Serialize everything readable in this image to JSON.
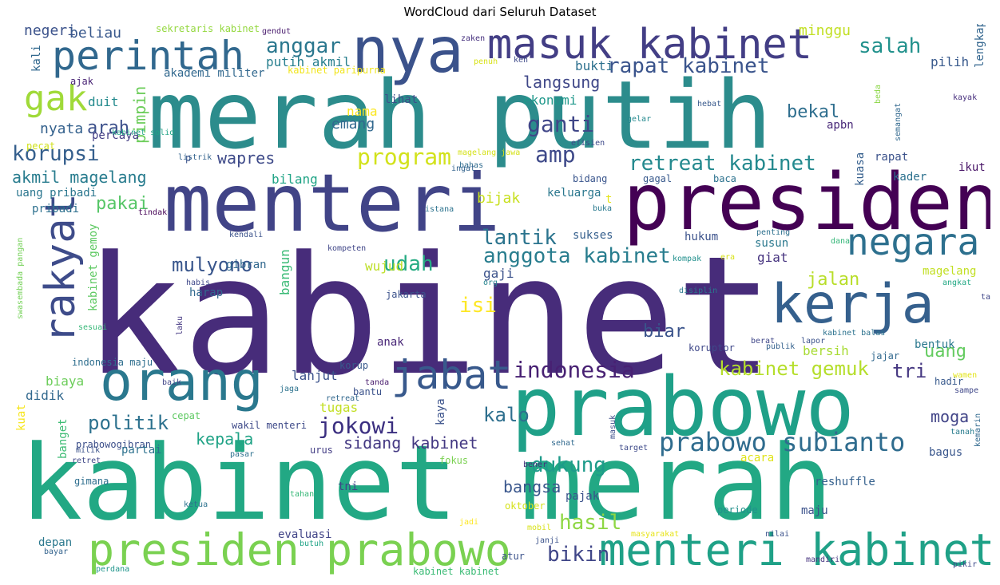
{
  "title": "WordCloud dari Seluruh Dataset",
  "words": [
    {
      "text": "kabinet",
      "color": "#472c7a"
    },
    {
      "text": "merah putih",
      "color": "#2c8c8c"
    },
    {
      "text": "kabinet merah",
      "color": "#22a884"
    },
    {
      "text": "prabowo",
      "color": "#1fa088"
    },
    {
      "text": "menteri",
      "color": "#414487"
    },
    {
      "text": "presiden",
      "color": "#440154"
    },
    {
      "text": "nya",
      "color": "#3b528b"
    },
    {
      "text": "kerja",
      "color": "#35608d"
    },
    {
      "text": "orang",
      "color": "#2a788e"
    },
    {
      "text": "presiden prabowo",
      "color": "#7ad151"
    },
    {
      "text": "menteri kabinet",
      "color": "#1fa187"
    },
    {
      "text": "masuk kabinet",
      "color": "#433e85"
    },
    {
      "text": "perintah",
      "color": "#31688e"
    },
    {
      "text": "rakyat",
      "color": "#3e4c8a"
    },
    {
      "text": "negara",
      "color": "#2d708e"
    },
    {
      "text": "jabat",
      "color": "#38598c"
    },
    {
      "text": "gak",
      "color": "#a0da39"
    },
    {
      "text": "prabowo subianto",
      "color": "#2f6c8e"
    },
    {
      "text": "indonesia",
      "color": "#482173"
    },
    {
      "text": "retreat kabinet",
      "color": "#23898e"
    },
    {
      "text": "rapat kabinet",
      "color": "#3a548c"
    },
    {
      "text": "anggota kabinet",
      "color": "#287d8e"
    },
    {
      "text": "kabinet gemuk",
      "color": "#b5de2b"
    },
    {
      "text": "jokowi",
      "color": "#3b2f80"
    },
    {
      "text": "ganti",
      "color": "#404688"
    },
    {
      "text": "program",
      "color": "#d2e21b"
    },
    {
      "text": "amp",
      "color": "#3e4989"
    },
    {
      "text": "korupsi",
      "color": "#355f8d"
    },
    {
      "text": "anggar",
      "color": "#2a778e"
    },
    {
      "text": "salah",
      "color": "#21918c"
    },
    {
      "text": "hasil",
      "color": "#8fd744"
    },
    {
      "text": "bikin",
      "color": "#404688"
    },
    {
      "text": "dukung",
      "color": "#1e9b8a"
    },
    {
      "text": "udah",
      "color": "#25ab82"
    },
    {
      "text": "lantik",
      "color": "#2b748e"
    },
    {
      "text": "isi",
      "color": "#fde725"
    },
    {
      "text": "mulyono",
      "color": "#39568c"
    },
    {
      "text": "politik",
      "color": "#2c718e"
    },
    {
      "text": "kalo",
      "color": "#2e6f8e"
    },
    {
      "text": "tri",
      "color": "#453781"
    },
    {
      "text": "akmil magelang",
      "color": "#287c8e"
    },
    {
      "text": "wapres",
      "color": "#3e4a89"
    },
    {
      "text": "pimpin",
      "color": "#6ccd5a"
    },
    {
      "text": "sidang kabinet",
      "color": "#443983"
    },
    {
      "text": "pakai",
      "color": "#56c667"
    },
    {
      "text": "arah",
      "color": "#3c508b"
    },
    {
      "text": "bekal",
      "color": "#2e6e8e"
    },
    {
      "text": "langsung",
      "color": "#3f4788"
    },
    {
      "text": "biar",
      "color": "#3a538b"
    },
    {
      "text": "jalan",
      "color": "#b8de29"
    },
    {
      "text": "uang",
      "color": "#63cb5f"
    },
    {
      "text": "moga",
      "color": "#414487"
    },
    {
      "text": "kepala",
      "color": "#20a386"
    },
    {
      "text": "bangsa",
      "color": "#39568c"
    },
    {
      "text": "duit",
      "color": "#238a8d"
    },
    {
      "text": "nyata",
      "color": "#34618d"
    },
    {
      "text": "emang",
      "color": "#31688e"
    },
    {
      "text": "ekonomi",
      "color": "#1f988b"
    },
    {
      "text": "lihat",
      "color": "#3d4e8a"
    },
    {
      "text": "nama",
      "color": "#fbe723"
    },
    {
      "text": "negeri",
      "color": "#3b528b"
    },
    {
      "text": "beliau",
      "color": "#38588c"
    },
    {
      "text": "minggu",
      "color": "#c2df23"
    },
    {
      "text": "lengkap",
      "color": "#32658e"
    },
    {
      "text": "pilih",
      "color": "#38598c"
    },
    {
      "text": "bukti",
      "color": "#2d708e"
    },
    {
      "text": "putih akmil",
      "color": "#277f8e"
    },
    {
      "text": "akademi militer",
      "color": "#31688e"
    },
    {
      "text": "kabinet paripurna",
      "color": "#f1e51d"
    },
    {
      "text": "sekretaris kabinet",
      "color": "#95d840"
    },
    {
      "text": "gendut",
      "color": "#481b6d"
    },
    {
      "text": "zaken",
      "color": "#46307e"
    },
    {
      "text": "penuh",
      "color": "#d8e219"
    },
    {
      "text": "ken",
      "color": "#3e4a89"
    },
    {
      "text": "kali",
      "color": "#31688e"
    },
    {
      "text": "ajak",
      "color": "#482374"
    },
    {
      "text": "percaya",
      "color": "#433d84"
    },
    {
      "text": "pecat",
      "color": "#d0e11c"
    },
    {
      "text": "kabinet solid",
      "color": "#20a386"
    },
    {
      "text": "bilang",
      "color": "#20a486"
    },
    {
      "text": "uang pribadi",
      "color": "#2a768e"
    },
    {
      "text": "pribadi",
      "color": "#2d708e"
    },
    {
      "text": "bijak",
      "color": "#c8e020"
    },
    {
      "text": "keluarga",
      "color": "#2a778e"
    },
    {
      "text": "bidang",
      "color": "#39558c"
    },
    {
      "text": "gagal",
      "color": "#38598c"
    },
    {
      "text": "baca",
      "color": "#2c728e"
    },
    {
      "text": "kuasa",
      "color": "#355f8d"
    },
    {
      "text": "rapat",
      "color": "#3b528b"
    },
    {
      "text": "kader",
      "color": "#2c718e"
    },
    {
      "text": "ikut",
      "color": "#481467"
    },
    {
      "text": "apbn",
      "color": "#482878"
    },
    {
      "text": "hebat",
      "color": "#38598c"
    },
    {
      "text": "gelar",
      "color": "#23898e"
    },
    {
      "text": "semangat",
      "color": "#31688e"
    },
    {
      "text": "beda",
      "color": "#8bd646"
    },
    {
      "text": "kayak",
      "color": "#472f7d"
    },
    {
      "text": "efisien",
      "color": "#3e4989"
    },
    {
      "text": "magelang jawa",
      "color": "#d5e21a"
    },
    {
      "text": "bahas",
      "color": "#2f6c8e"
    },
    {
      "text": "ingat",
      "color": "#33638d"
    },
    {
      "text": "listrik",
      "color": "#33638d"
    },
    {
      "text": "p",
      "color": "#3a548c"
    },
    {
      "text": "t",
      "color": "#e5e419"
    },
    {
      "text": "buka",
      "color": "#29798e"
    },
    {
      "text": "tindak",
      "color": "#440154"
    },
    {
      "text": "istana",
      "color": "#2c728e"
    },
    {
      "text": "sukses",
      "color": "#355f8d"
    },
    {
      "text": "hukum",
      "color": "#3b528b"
    },
    {
      "text": "kendali",
      "color": "#3b528b"
    },
    {
      "text": "kompeten",
      "color": "#404688"
    },
    {
      "text": "swasembada pangan",
      "color": "#73d056"
    },
    {
      "text": "kabinet gemoy",
      "color": "#5ec962"
    },
    {
      "text": "bangun",
      "color": "#3aba76"
    },
    {
      "text": "gibran",
      "color": "#31688e"
    },
    {
      "text": "wujud",
      "color": "#bddf26"
    },
    {
      "text": "gaji",
      "color": "#3b528b"
    },
    {
      "text": "org",
      "color": "#25848e"
    },
    {
      "text": "susun",
      "color": "#2a788e"
    },
    {
      "text": "penting",
      "color": "#2d708e"
    },
    {
      "text": "kompak",
      "color": "#21908d"
    },
    {
      "text": "dana",
      "color": "#35b779"
    },
    {
      "text": "giat",
      "color": "#46337f"
    },
    {
      "text": "magelang",
      "color": "#c2df23"
    },
    {
      "text": "angkat",
      "color": "#22a884"
    },
    {
      "text": "tarik",
      "color": "#3f4788"
    },
    {
      "text": "disiplin",
      "color": "#2a788e"
    },
    {
      "text": "habis",
      "color": "#3f4889"
    },
    {
      "text": "harap",
      "color": "#31688e"
    },
    {
      "text": "jakarta",
      "color": "#3b528b"
    },
    {
      "text": "sesuai",
      "color": "#37b878"
    },
    {
      "text": "laku",
      "color": "#453882"
    },
    {
      "text": "anak",
      "color": "#482677"
    },
    {
      "text": "era",
      "color": "#d8e219"
    },
    {
      "text": "lapor",
      "color": "#3b528b"
    },
    {
      "text": "berat",
      "color": "#3f4788"
    },
    {
      "text": "publik",
      "color": "#34618d"
    },
    {
      "text": "kabinet balas",
      "color": "#2c728e"
    },
    {
      "text": "bersih",
      "color": "#a8db34"
    },
    {
      "text": "jajar",
      "color": "#31688e"
    },
    {
      "text": "koruptor",
      "color": "#3f4889"
    },
    {
      "text": "bentuk",
      "color": "#2a788e"
    },
    {
      "text": "indonesia maju",
      "color": "#2e6e8e"
    },
    {
      "text": "biaya",
      "color": "#6ccd5a"
    },
    {
      "text": "korup",
      "color": "#38598c"
    },
    {
      "text": "lanjut",
      "color": "#3b528b"
    },
    {
      "text": "wamen",
      "color": "#e2e418"
    },
    {
      "text": "hadir",
      "color": "#38598c"
    },
    {
      "text": "sampe",
      "color": "#3f4788"
    },
    {
      "text": "didik",
      "color": "#31688e"
    },
    {
      "text": "baik",
      "color": "#404688"
    },
    {
      "text": "jaga",
      "color": "#2c728e"
    },
    {
      "text": "retreat",
      "color": "#31688e"
    },
    {
      "text": "tanda",
      "color": "#481b6d"
    },
    {
      "text": "bantu",
      "color": "#3b528b"
    },
    {
      "text": "tugas",
      "color": "#c2df23"
    },
    {
      "text": "kuat",
      "color": "#f6e620"
    },
    {
      "text": "banget",
      "color": "#3dbc74"
    },
    {
      "text": "cepat",
      "color": "#5ec962"
    },
    {
      "text": "wakil menteri",
      "color": "#3e4a89"
    },
    {
      "text": "kaya",
      "color": "#3b528b"
    },
    {
      "text": "masuk",
      "color": "#3d4e8a"
    },
    {
      "text": "kemarin",
      "color": "#30698e"
    },
    {
      "text": "tanah",
      "color": "#287c8e"
    },
    {
      "text": "prabowogibran",
      "color": "#3c4f8a"
    },
    {
      "text": "partai",
      "color": "#2c718e"
    },
    {
      "text": "sehat",
      "color": "#30698e"
    },
    {
      "text": "target",
      "color": "#3e4a89"
    },
    {
      "text": "bagus",
      "color": "#39568c"
    },
    {
      "text": "milik",
      "color": "#3b528b"
    },
    {
      "text": "retret",
      "color": "#3f4788"
    },
    {
      "text": "pasar",
      "color": "#2d708e"
    },
    {
      "text": "urus",
      "color": "#433d84"
    },
    {
      "text": "fokus",
      "color": "#7ad151"
    },
    {
      "text": "acara",
      "color": "#dfe318"
    },
    {
      "text": "bener",
      "color": "#472d7b"
    },
    {
      "text": "gimana",
      "color": "#2e6e8e"
    },
    {
      "text": "tni",
      "color": "#404688"
    },
    {
      "text": "pajak",
      "color": "#3b528b"
    },
    {
      "text": "reshuffle",
      "color": "#34608d"
    },
    {
      "text": "tahan",
      "color": "#37b878"
    },
    {
      "text": "ketua",
      "color": "#2c728e"
    },
    {
      "text": "oktober",
      "color": "#d5e21a"
    },
    {
      "text": "periode",
      "color": "#21918c"
    },
    {
      "text": "maju",
      "color": "#3b528b"
    },
    {
      "text": "evaluasi",
      "color": "#414487"
    },
    {
      "text": "jadi",
      "color": "#fde725"
    },
    {
      "text": "mobil",
      "color": "#d8e219"
    },
    {
      "text": "masyarakat",
      "color": "#e7e419"
    },
    {
      "text": "nilai",
      "color": "#3b528b"
    },
    {
      "text": "depan",
      "color": "#2a788e"
    },
    {
      "text": "butuh",
      "color": "#20a386"
    },
    {
      "text": "janji",
      "color": "#3b528b"
    },
    {
      "text": "atur",
      "color": "#3b528b"
    },
    {
      "text": "mandiri",
      "color": "#46337f"
    },
    {
      "text": "bayar",
      "color": "#33638d"
    },
    {
      "text": "pikir",
      "color": "#3e4a89"
    },
    {
      "text": "perdana",
      "color": "#1f958b"
    },
    {
      "text": "kabinet kabinet",
      "color": "#3bbb75"
    }
  ]
}
